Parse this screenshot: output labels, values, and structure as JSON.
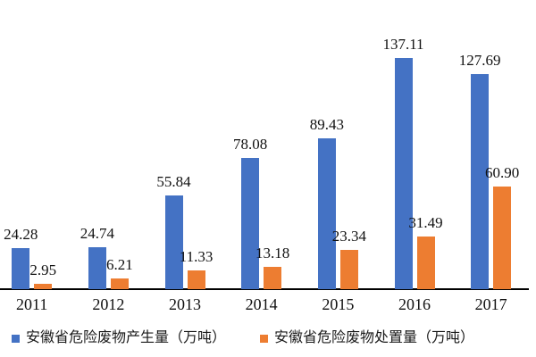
{
  "chart_data": {
    "type": "bar",
    "title": "",
    "xlabel": "",
    "ylabel": "",
    "categories": [
      "2011",
      "2012",
      "2013",
      "2014",
      "2015",
      "2016",
      "2017"
    ],
    "series": [
      {
        "name": "安徽省危险废物产生量（万吨）",
        "color": "#4472C4",
        "values": [
          24.28,
          24.74,
          55.84,
          78.08,
          89.43,
          137.11,
          127.69
        ],
        "value_labels": [
          "24.28",
          "24.74",
          "55.84",
          "78.08",
          "89.43",
          "137.11",
          "127.69"
        ]
      },
      {
        "name": "安徽省危险废物处置量（万吨）",
        "color": "#ED7D31",
        "values": [
          2.95,
          6.21,
          11.33,
          13.18,
          23.34,
          31.49,
          60.9
        ],
        "value_labels": [
          "2.95",
          "6.21",
          "11.33",
          "13.18",
          "23.34",
          "31.49",
          "60.90"
        ]
      }
    ],
    "ylim": [
      0,
      150
    ],
    "grid": false,
    "legend_position": "bottom",
    "value_labels_shown": true,
    "axis_line_color": "#000000"
  }
}
